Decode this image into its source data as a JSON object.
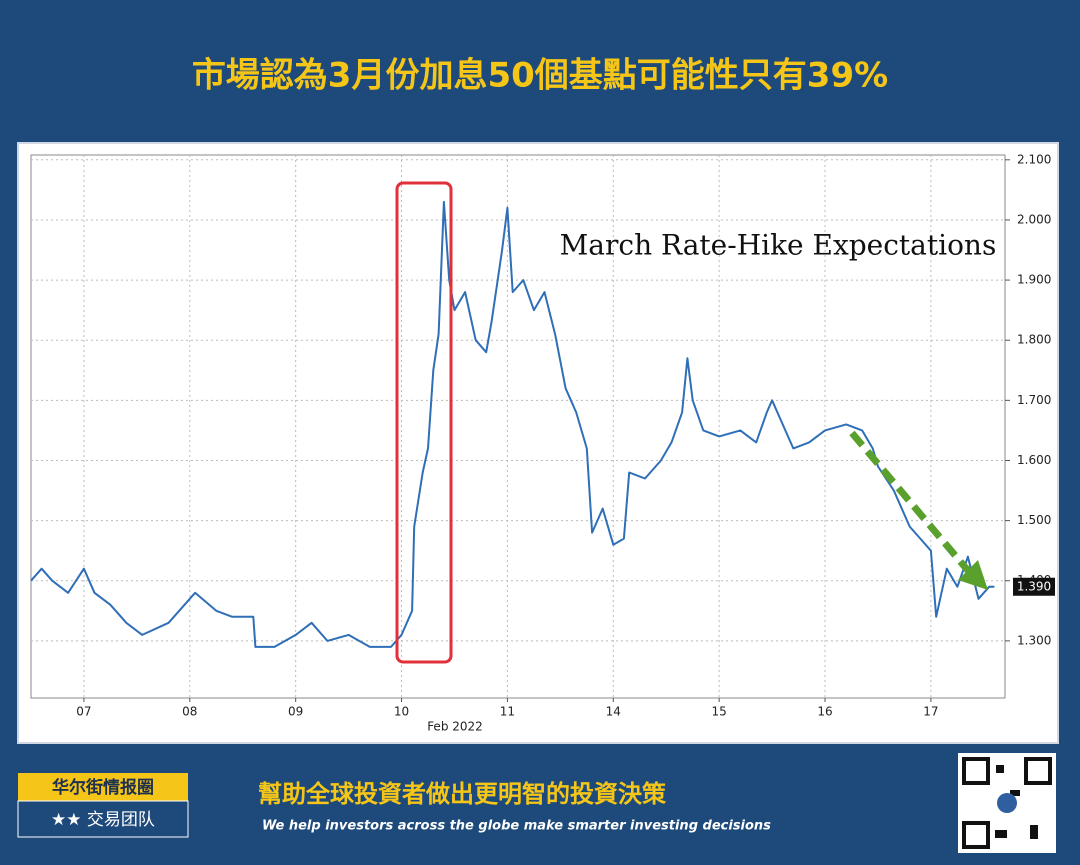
{
  "header": {
    "title": "市場認為3月份加息50個基點可能性只有39%"
  },
  "chart_data": {
    "type": "line",
    "title": "March Rate-Hike Expectations",
    "x_label": "Feb 2022",
    "color": "#2f6fb8",
    "x": [
      0,
      0.1,
      0.2,
      0.35,
      0.5,
      0.6,
      0.75,
      0.9,
      1.05,
      1.3,
      1.45,
      1.55,
      1.75,
      1.9,
      2.1,
      2.12,
      2.3,
      2.5,
      2.65,
      2.8,
      3.0,
      3.2,
      3.4,
      3.5,
      3.6,
      3.62,
      3.7,
      3.75,
      3.8,
      3.85,
      3.9,
      3.95,
      4.0,
      4.1,
      4.2,
      4.3,
      4.35,
      4.45,
      4.5,
      4.55,
      4.65,
      4.75,
      4.85,
      4.95,
      5.05,
      5.15,
      5.25,
      5.3,
      5.4,
      5.5,
      5.6,
      5.65,
      5.8,
      5.95,
      6.05,
      6.15,
      6.2,
      6.25,
      6.35,
      6.5,
      6.7,
      6.85,
      6.95,
      7.0,
      7.1,
      7.2,
      7.35,
      7.5,
      7.7,
      7.85,
      7.95,
      8.0,
      8.15,
      8.3,
      8.4,
      8.5,
      8.55,
      8.65,
      8.75,
      8.85,
      8.95,
      9.05,
      9.1
    ],
    "values": [
      1.4,
      1.42,
      1.4,
      1.38,
      1.42,
      1.38,
      1.36,
      1.33,
      1.31,
      1.33,
      1.36,
      1.38,
      1.35,
      1.34,
      1.34,
      1.29,
      1.29,
      1.31,
      1.33,
      1.3,
      1.31,
      1.29,
      1.29,
      1.31,
      1.35,
      1.49,
      1.58,
      1.62,
      1.75,
      1.81,
      2.03,
      1.9,
      1.85,
      1.88,
      1.8,
      1.78,
      1.83,
      1.95,
      2.02,
      1.88,
      1.9,
      1.85,
      1.88,
      1.81,
      1.72,
      1.68,
      1.62,
      1.48,
      1.52,
      1.46,
      1.47,
      1.58,
      1.57,
      1.6,
      1.63,
      1.68,
      1.77,
      1.7,
      1.65,
      1.64,
      1.65,
      1.63,
      1.68,
      1.7,
      1.66,
      1.62,
      1.63,
      1.65,
      1.66,
      1.65,
      1.62,
      1.59,
      1.55,
      1.49,
      1.47,
      1.45,
      1.34,
      1.42,
      1.39,
      1.44,
      1.37,
      1.39,
      1.39
    ],
    "value_labels": [
      null,
      null,
      null,
      null,
      null,
      null,
      null,
      null,
      null,
      null,
      null,
      null,
      null,
      null,
      null,
      null,
      null,
      null,
      null,
      null,
      null,
      null,
      null,
      null,
      null,
      null,
      null,
      null,
      null,
      null,
      null,
      null,
      null,
      null,
      null,
      null,
      null,
      null,
      null,
      null,
      null,
      null,
      null,
      null,
      null,
      null,
      null,
      null,
      null,
      null,
      null,
      null,
      null,
      null,
      null,
      null,
      null,
      null,
      null,
      null,
      null,
      null,
      null,
      null,
      null,
      null,
      null,
      null,
      null,
      null,
      null,
      null,
      null,
      null,
      null,
      null,
      null,
      null,
      null,
      null,
      null,
      null,
      "1.390"
    ],
    "xlim": [
      0,
      9.2
    ],
    "xticks": [
      {
        "value": 0.5,
        "label": "07"
      },
      {
        "value": 1.5,
        "label": "08"
      },
      {
        "value": 2.5,
        "label": "09"
      },
      {
        "value": 3.5,
        "label": "10"
      },
      {
        "value": 4.5,
        "label": "11"
      },
      {
        "value": 5.5,
        "label": "14"
      },
      {
        "value": 6.5,
        "label": "15"
      },
      {
        "value": 7.5,
        "label": "16"
      },
      {
        "value": 8.5,
        "label": "17"
      }
    ],
    "ylim": [
      1.205,
      2.108
    ],
    "yticks": [
      {
        "value": 1.3,
        "label": "1.300"
      },
      {
        "value": 1.4,
        "label": "1.400"
      },
      {
        "value": 1.5,
        "label": "1.500"
      },
      {
        "value": 1.6,
        "label": "1.600"
      },
      {
        "value": 1.7,
        "label": "1.700"
      },
      {
        "value": 1.8,
        "label": "1.800"
      },
      {
        "value": 1.9,
        "label": "1.900"
      },
      {
        "value": 2.0,
        "label": "2.000"
      },
      {
        "value": 2.1,
        "label": "2.100"
      }
    ],
    "grid": true
  },
  "footer": {
    "brand": "华尔街情报圈",
    "team": "★★ 交易团队",
    "slogan": "幫助全球投資者做出更明智的投資決策",
    "slogan_en": "We help investors across the globe make smarter investing decisions"
  }
}
